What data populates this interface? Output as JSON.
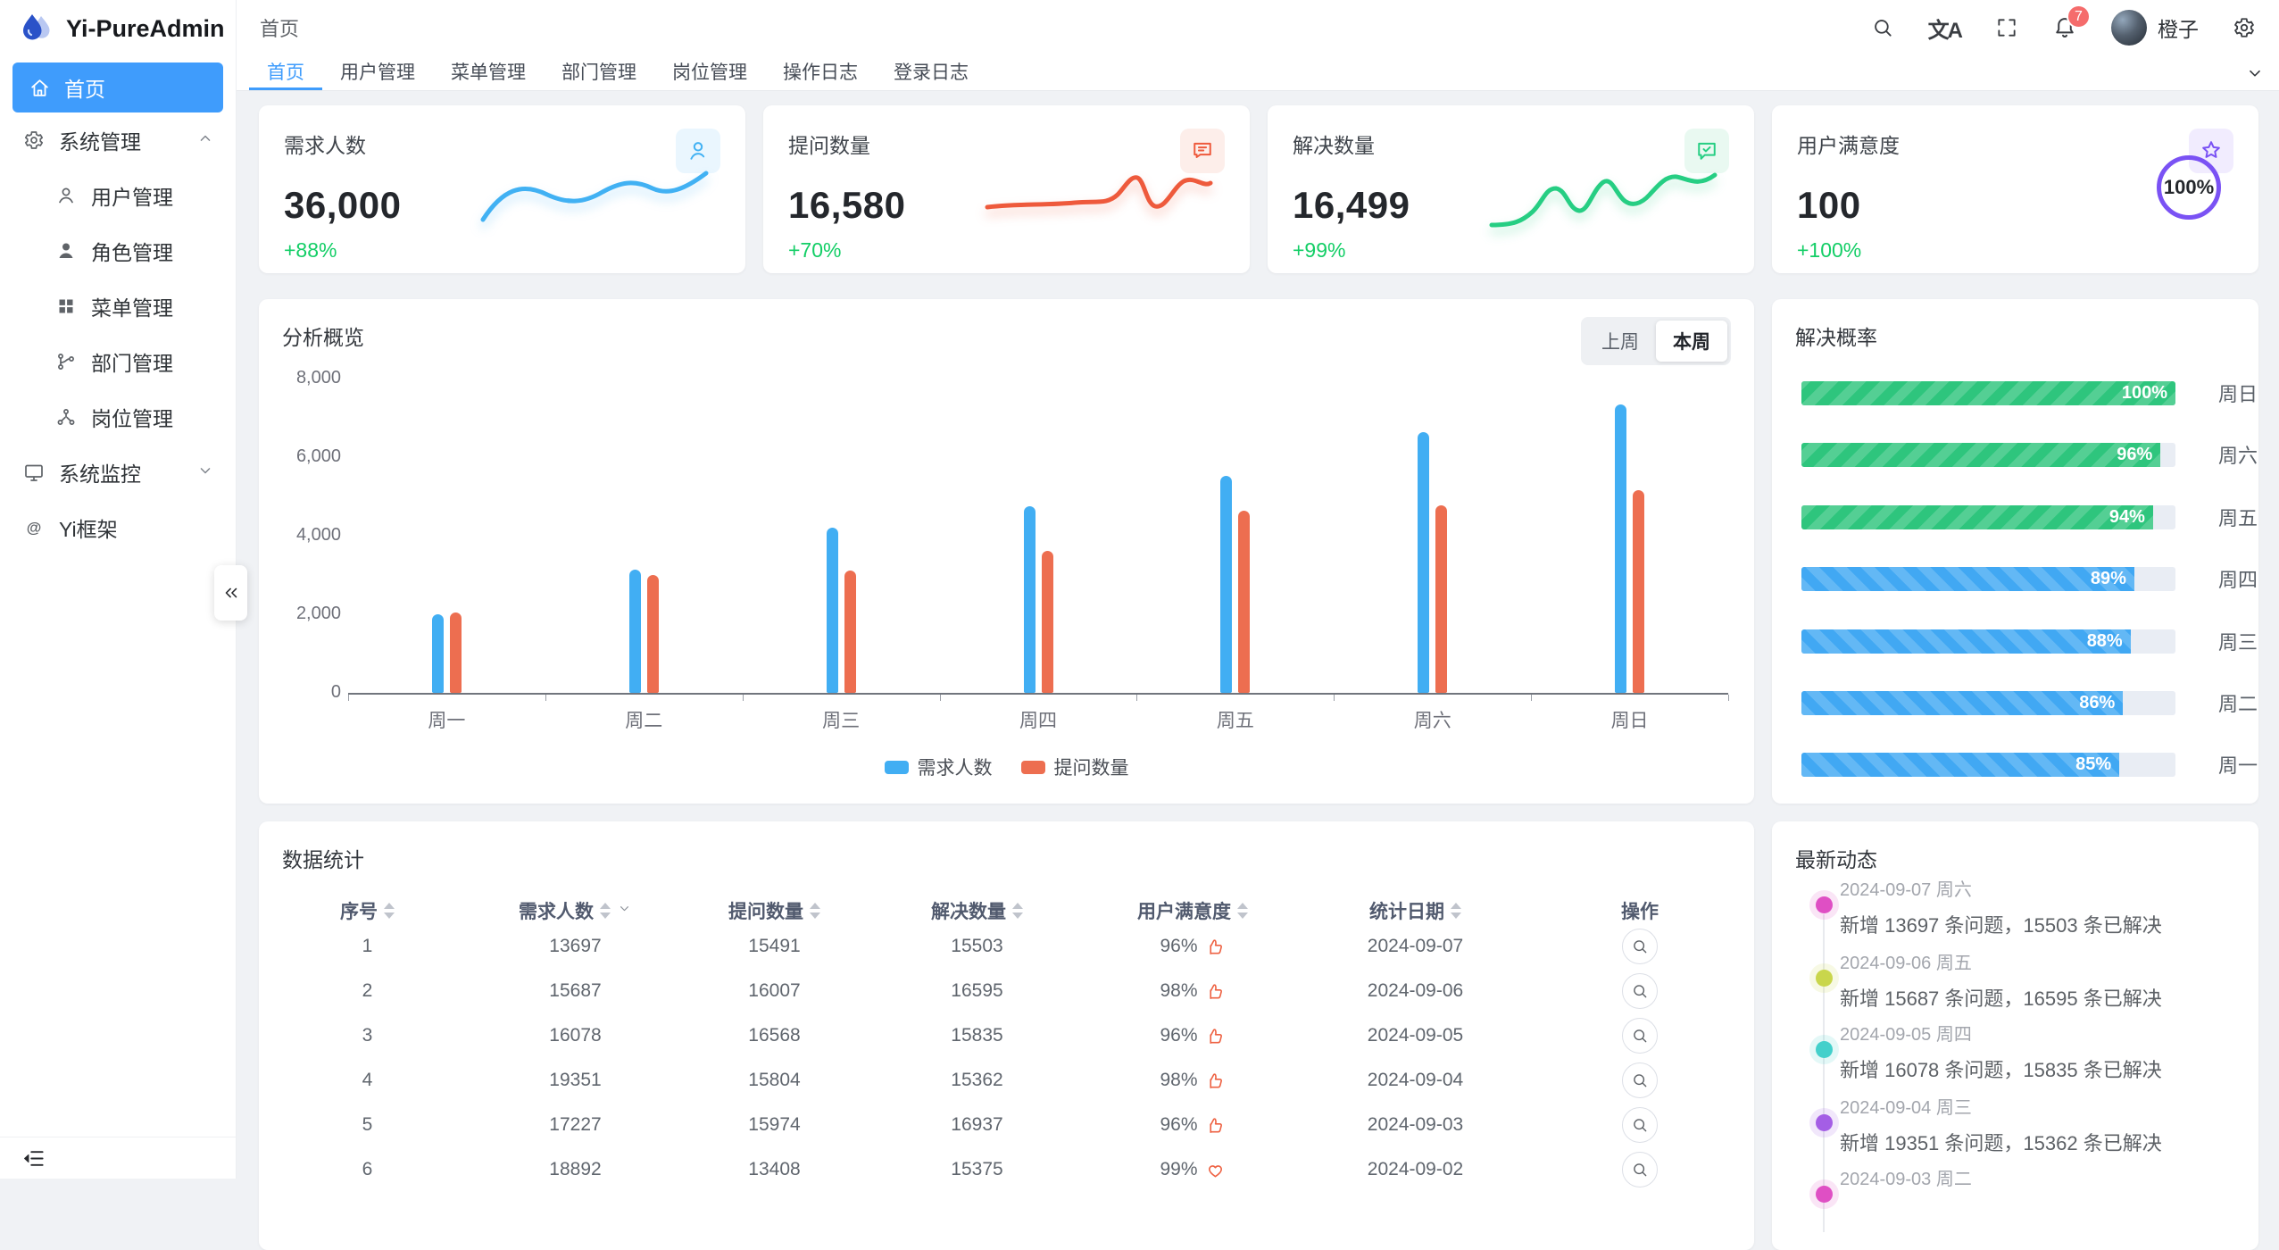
{
  "app": {
    "title": "Yi-PureAdmin",
    "breadcrumb": "首页",
    "username": "橙子",
    "notification_count": "7"
  },
  "glyphs": {
    "translate": "文A",
    "at": "@"
  },
  "sidebar": {
    "home": "首页",
    "groups": [
      {
        "label": "系统管理",
        "icon": "gear",
        "state": "expanded",
        "children": [
          {
            "label": "用户管理",
            "icon": "user"
          },
          {
            "label": "角色管理",
            "icon": "user-filled"
          },
          {
            "label": "菜单管理",
            "icon": "grid"
          },
          {
            "label": "部门管理",
            "icon": "branch"
          },
          {
            "label": "岗位管理",
            "icon": "nodes"
          }
        ]
      },
      {
        "label": "系统监控",
        "icon": "monitor",
        "state": "collapsed",
        "children": []
      },
      {
        "label": "Yi框架",
        "icon": "at",
        "state": "none",
        "children": []
      }
    ]
  },
  "tabs": [
    {
      "label": "首页",
      "active": true
    },
    {
      "label": "用户管理",
      "active": false
    },
    {
      "label": "菜单管理",
      "active": false
    },
    {
      "label": "部门管理",
      "active": false
    },
    {
      "label": "岗位管理",
      "active": false
    },
    {
      "label": "操作日志",
      "active": false
    },
    {
      "label": "登录日志",
      "active": false
    }
  ],
  "stat_cards": [
    {
      "title": "需求人数",
      "value": "36,000",
      "delta": "+88%",
      "icon": "user-o",
      "accent": "#41b1f3",
      "icon_bg": "#eaf6fe"
    },
    {
      "title": "提问数量",
      "value": "16,580",
      "delta": "+70%",
      "icon": "chat",
      "accent": "#ee5a3c",
      "icon_bg": "#fdeeea"
    },
    {
      "title": "解决数量",
      "value": "16,499",
      "delta": "+99%",
      "icon": "message-check",
      "accent": "#26ce83",
      "icon_bg": "#e9f9f1"
    },
    {
      "title": "用户满意度",
      "value": "100",
      "delta": "+100%",
      "icon": "star",
      "accent": "#7a52f4",
      "icon_bg": "#f1ecfe",
      "ring": "100%"
    }
  ],
  "overview": {
    "title": "分析概览",
    "toggle": [
      {
        "label": "上周",
        "active": false
      },
      {
        "label": "本周",
        "active": true
      }
    ]
  },
  "chart_data": {
    "type": "bar",
    "title": "分析概览",
    "categories": [
      "周一",
      "周二",
      "周三",
      "周四",
      "周五",
      "周六",
      "周日"
    ],
    "series": [
      {
        "name": "需求人数",
        "color": "#41aef3",
        "values": [
          2000,
          3130,
          4200,
          4750,
          5520,
          6640,
          7330
        ]
      },
      {
        "name": "提问数量",
        "color": "#ed6e50",
        "values": [
          2050,
          3000,
          3110,
          3610,
          4640,
          4780,
          5170
        ]
      }
    ],
    "ylim": [
      0,
      8000
    ],
    "yticks": [
      {
        "value": 8000,
        "label": "8,000"
      },
      {
        "value": 6000,
        "label": "6,000"
      },
      {
        "value": 4000,
        "label": "4,000"
      },
      {
        "value": 2000,
        "label": "2,000"
      },
      {
        "value": 0,
        "label": "0"
      }
    ],
    "grid": false,
    "legend_position": "bottom"
  },
  "solve_rate": {
    "title": "解决概率",
    "items": [
      {
        "day": "周日",
        "value": 100,
        "color": "#2ec57d",
        "tone": "green"
      },
      {
        "day": "周六",
        "value": 96,
        "color": "#2ec57d",
        "tone": "green"
      },
      {
        "day": "周五",
        "value": 94,
        "color": "#2ec57d",
        "tone": "green"
      },
      {
        "day": "周四",
        "value": 89,
        "color": "#41a8f3",
        "tone": "blue"
      },
      {
        "day": "周三",
        "value": 88,
        "color": "#41a8f3",
        "tone": "blue"
      },
      {
        "day": "周二",
        "value": 86,
        "color": "#41a8f3",
        "tone": "blue"
      },
      {
        "day": "周一",
        "value": 85,
        "color": "#41a8f3",
        "tone": "blue"
      }
    ]
  },
  "stats_table": {
    "title": "数据统计",
    "columns": [
      {
        "label": "序号",
        "sortable": true,
        "filter": false
      },
      {
        "label": "需求人数",
        "sortable": true,
        "filter": true
      },
      {
        "label": "提问数量",
        "sortable": true,
        "filter": false
      },
      {
        "label": "解决数量",
        "sortable": true,
        "filter": false
      },
      {
        "label": "用户满意度",
        "sortable": true,
        "filter": false
      },
      {
        "label": "统计日期",
        "sortable": true,
        "filter": false
      },
      {
        "label": "操作",
        "sortable": false,
        "filter": false
      }
    ],
    "rows": [
      {
        "seq": "1",
        "demand": "13697",
        "question": "15491",
        "solved": "15503",
        "satisfaction": "96%",
        "like": "thumb",
        "date": "2024-09-07"
      },
      {
        "seq": "2",
        "demand": "15687",
        "question": "16007",
        "solved": "16595",
        "satisfaction": "98%",
        "like": "thumb",
        "date": "2024-09-06"
      },
      {
        "seq": "3",
        "demand": "16078",
        "question": "16568",
        "solved": "15835",
        "satisfaction": "96%",
        "like": "thumb",
        "date": "2024-09-05"
      },
      {
        "seq": "4",
        "demand": "19351",
        "question": "15804",
        "solved": "15362",
        "satisfaction": "98%",
        "like": "thumb",
        "date": "2024-09-04"
      },
      {
        "seq": "5",
        "demand": "17227",
        "question": "15974",
        "solved": "16937",
        "satisfaction": "96%",
        "like": "thumb",
        "date": "2024-09-03"
      },
      {
        "seq": "6",
        "demand": "18892",
        "question": "13408",
        "solved": "15375",
        "satisfaction": "99%",
        "like": "heart",
        "date": "2024-09-02"
      }
    ]
  },
  "news": {
    "title": "最新动态",
    "items": [
      {
        "date": "2024-09-07 周六",
        "text": "新增 13697 条问题，15503 条已解决",
        "color": "#df4fc4"
      },
      {
        "date": "2024-09-06 周五",
        "text": "新增 15687 条问题，16595 条已解决",
        "color": "#c9d64c"
      },
      {
        "date": "2024-09-05 周四",
        "text": "新增 16078 条问题，15835 条已解决",
        "color": "#43d0cb"
      },
      {
        "date": "2024-09-04 周三",
        "text": "新增 19351 条问题，15362 条已解决",
        "color": "#a45ee5"
      },
      {
        "date": "2024-09-03 周二",
        "text": "",
        "color": "#df4fc4"
      }
    ]
  }
}
